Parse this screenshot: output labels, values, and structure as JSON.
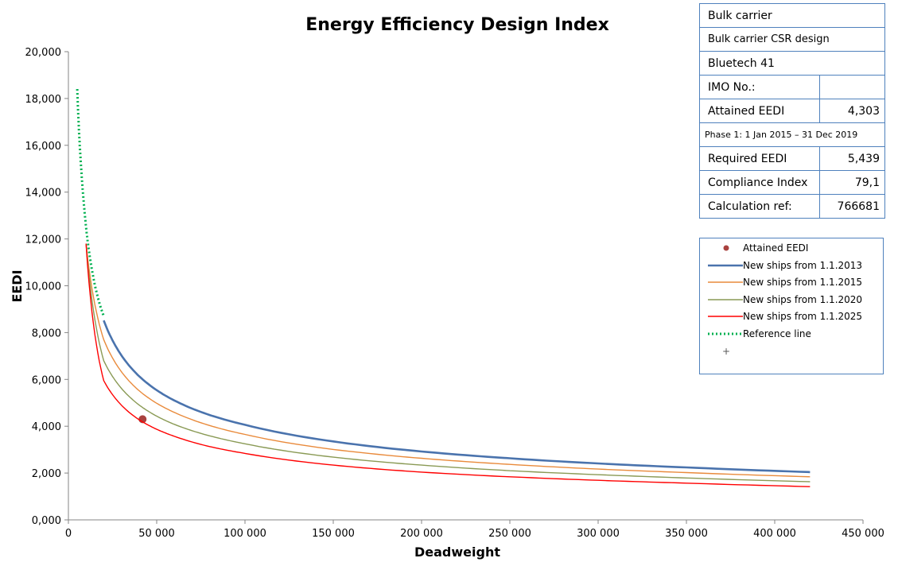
{
  "chart_data": {
    "type": "line",
    "title": "Energy Efficiency Design Index",
    "xlabel": "Deadweight",
    "ylabel": "EEDI",
    "xlim": [
      0,
      450000
    ],
    "ylim": [
      0,
      20000
    ],
    "x_ticks": [
      "0",
      "50 000",
      "100 000",
      "150 000",
      "200 000",
      "250 000",
      "300 000",
      "350 000",
      "400 000",
      "450 000"
    ],
    "y_ticks": [
      "0,000",
      "2,000",
      "4,000",
      "6,000",
      "8,000",
      "10,000",
      "12,000",
      "14,000",
      "16,000",
      "18,000",
      "20,000"
    ],
    "grid": false,
    "legend_position": "right",
    "series": [
      {
        "name": "Attained EEDI",
        "style": "marker",
        "color": "#a9423f",
        "points": [
          [
            42000,
            4300
          ]
        ]
      },
      {
        "name": "New ships from 1.1.2013",
        "style": "line",
        "color": "#4a73ad",
        "x": [
          20000,
          30000,
          40000,
          50000,
          60000,
          80000,
          100000,
          150000,
          200000,
          250000,
          300000,
          350000,
          420000
        ],
        "y": [
          8520,
          7030,
          6140,
          5540,
          5100,
          4480,
          4060,
          3350,
          2920,
          2630,
          2410,
          2240,
          2040
        ]
      },
      {
        "name": "New ships from 1.1.2015",
        "style": "line",
        "color": "#e98a3b",
        "x": [
          10000,
          20000,
          30000,
          40000,
          50000,
          60000,
          80000,
          100000,
          150000,
          200000,
          250000,
          300000,
          350000,
          420000
        ],
        "y": [
          11800,
          7700,
          6330,
          5520,
          4980,
          4590,
          4030,
          3650,
          3010,
          2630,
          2370,
          2170,
          2020,
          1840
        ]
      },
      {
        "name": "New ships from 1.1.2020",
        "style": "line",
        "color": "#8a9a55",
        "x": [
          10000,
          20000,
          30000,
          40000,
          50000,
          60000,
          80000,
          100000,
          150000,
          200000,
          250000,
          300000,
          350000,
          420000
        ],
        "y": [
          11800,
          6800,
          5620,
          4910,
          4430,
          4080,
          3590,
          3250,
          2680,
          2340,
          2100,
          1930,
          1790,
          1630
        ]
      },
      {
        "name": "New ships from 1.1.2025",
        "style": "line",
        "color": "#ff0000",
        "x": [
          10000,
          20000,
          30000,
          40000,
          50000,
          60000,
          80000,
          100000,
          150000,
          200000,
          250000,
          300000,
          350000,
          420000
        ],
        "y": [
          11800,
          5950,
          4900,
          4280,
          3870,
          3570,
          3130,
          2840,
          2340,
          2040,
          1840,
          1690,
          1570,
          1420
        ]
      },
      {
        "name": "Reference line",
        "style": "dotted",
        "color": "#00b050",
        "x": [
          5000,
          6000,
          7000,
          8000,
          9000,
          10000,
          12000,
          14000,
          16000,
          18000,
          20000
        ],
        "y": [
          18400,
          16600,
          15300,
          14200,
          13300,
          12500,
          11300,
          10400,
          9700,
          9150,
          8700
        ]
      }
    ]
  },
  "info_table": {
    "ship_type": "Bulk carrier",
    "design": "Bulk carrier CSR design",
    "ship_name": "Bluetech 41",
    "imo_label": "IMO No.:",
    "imo_value": "",
    "attained_label": "Attained EEDI",
    "attained_value": "4,303",
    "phase": "Phase 1: 1 Jan 2015 – 31 Dec 2019",
    "required_label": "Required EEDI",
    "required_value": "5,439",
    "compliance_label": "Compliance Index",
    "compliance_value": "79,1",
    "calc_label": "Calculation ref:",
    "calc_value": "766681"
  },
  "legend": {
    "items": [
      {
        "label": "Attained EEDI",
        "kind": "marker",
        "color": "#a9423f"
      },
      {
        "label": "New ships from 1.1.2013",
        "kind": "line-thick",
        "color": "#4a73ad"
      },
      {
        "label": "New ships from 1.1.2015",
        "kind": "line",
        "color": "#e98a3b"
      },
      {
        "label": "New ships from 1.1.2020",
        "kind": "line",
        "color": "#8a9a55"
      },
      {
        "label": "New ships from 1.1.2025",
        "kind": "line",
        "color": "#ff0000"
      },
      {
        "label": "Reference line",
        "kind": "dotted",
        "color": "#00b050"
      },
      {
        "label": "",
        "kind": "plus",
        "color": "#595959"
      }
    ]
  }
}
